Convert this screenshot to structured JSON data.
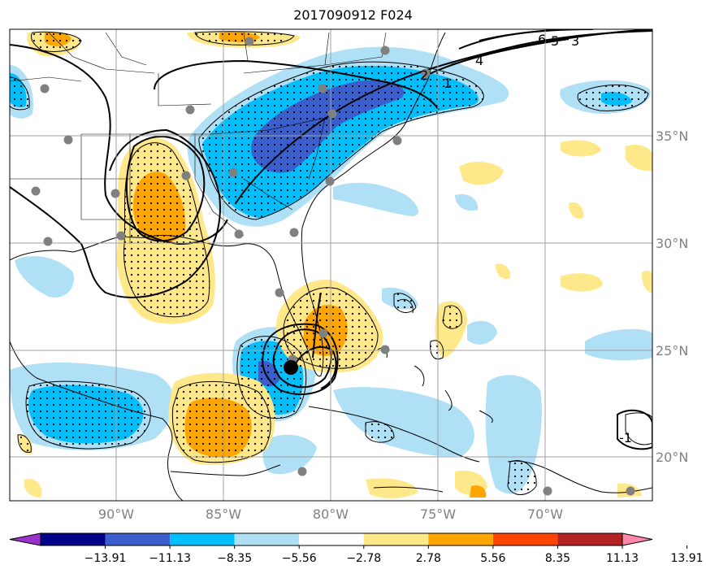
{
  "title": "2017090912 F024",
  "axes": {
    "lon_labels": [
      "90°W",
      "85°W",
      "80°W",
      "75°W",
      "70°W"
    ],
    "lat_labels": [
      "35°N",
      "30°N",
      "25°N",
      "20°N"
    ]
  },
  "contour_labels": [
    "6",
    "5",
    "4",
    "3",
    "2",
    "1",
    "-1"
  ],
  "colorbar": {
    "colors": [
      "#9932cc",
      "#00008b",
      "#3a5fcd",
      "#00bfff",
      "#b0e0f6",
      "#ffffff",
      "#ffe88a",
      "#ffa500",
      "#ff4500",
      "#b22222",
      "#ff88aa"
    ],
    "tick_labels": [
      "−13.91",
      "−11.13",
      "−8.35",
      "−5.56",
      "−2.78",
      "2.78",
      "5.56",
      "8.35",
      "11.13",
      "13.91"
    ]
  },
  "colors": {
    "land_line": "#000000",
    "grid": "#a0a0a0",
    "station": "#808080",
    "storm_center": "#000000"
  }
}
